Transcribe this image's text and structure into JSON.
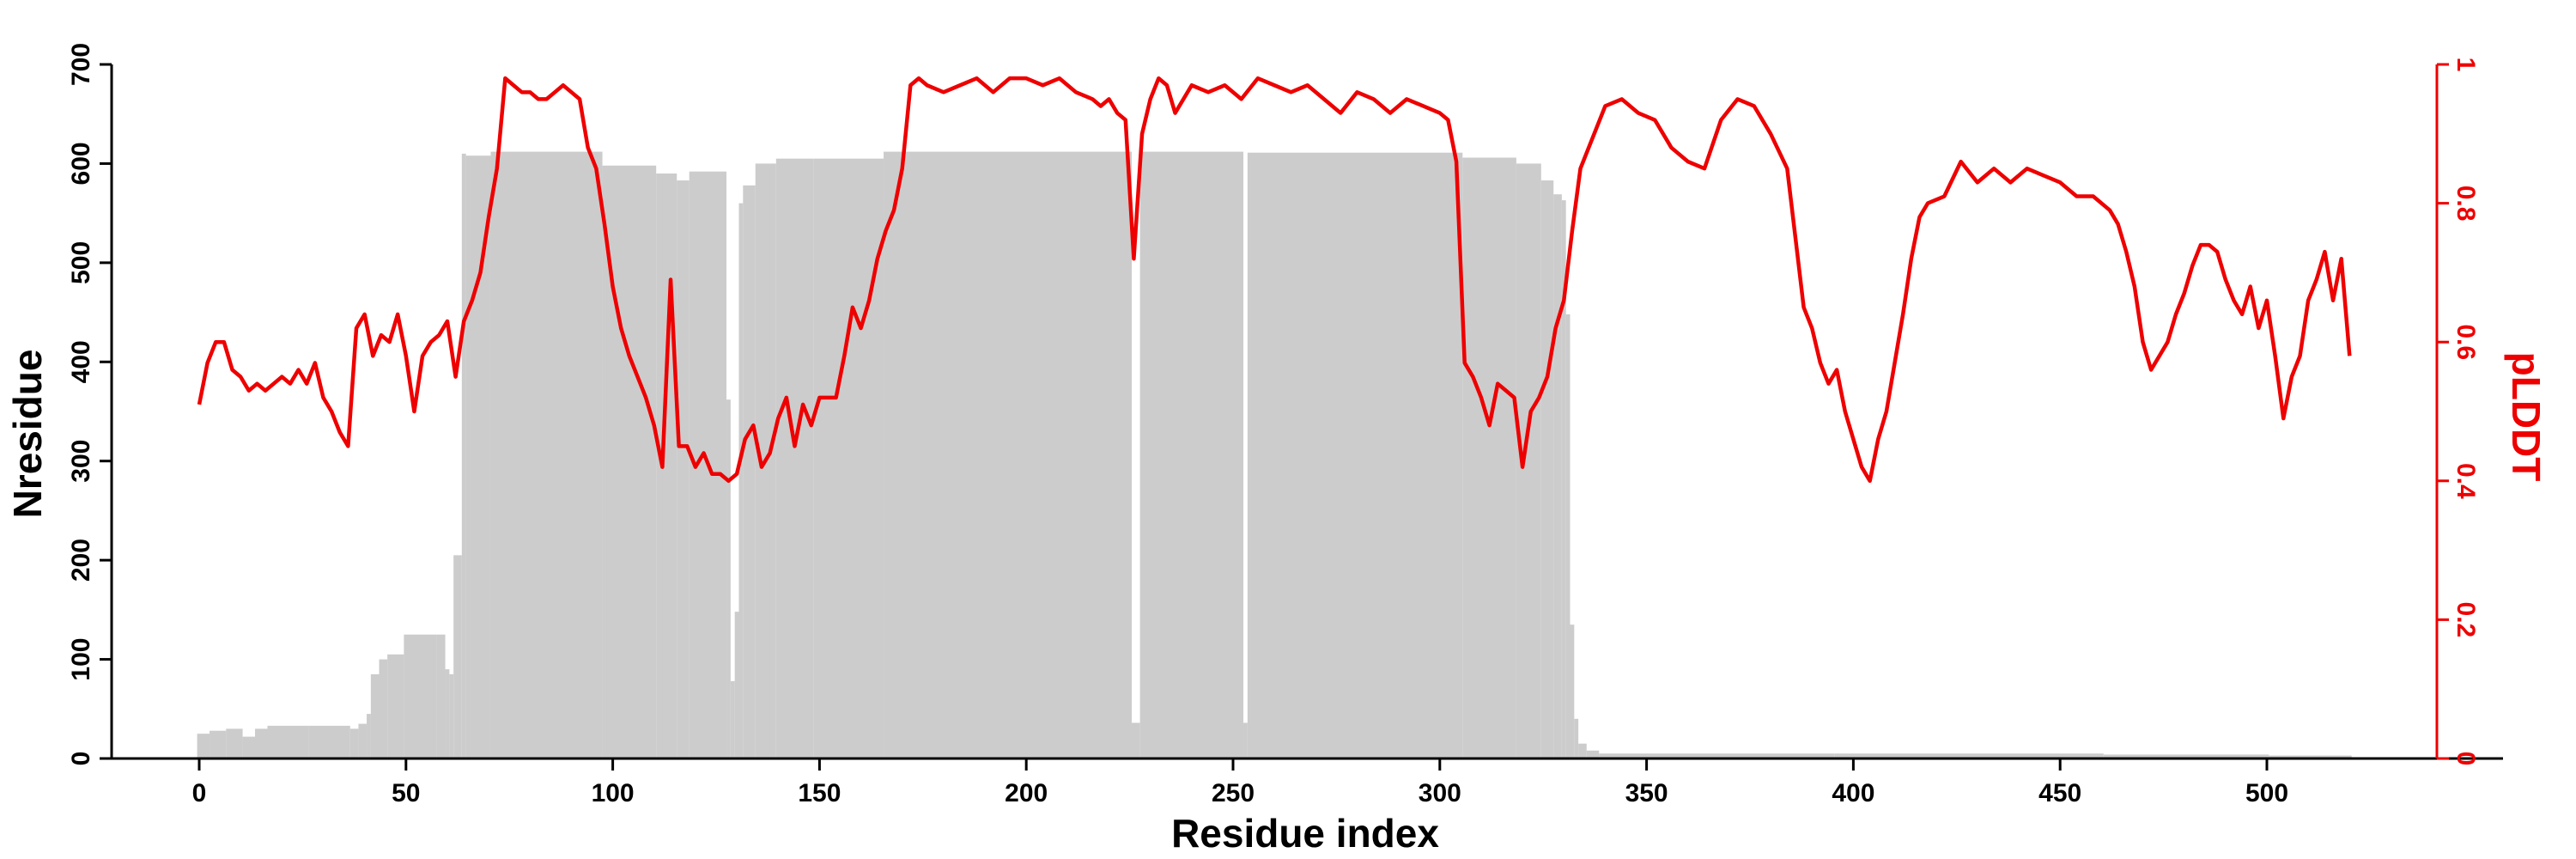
{
  "chart_data": {
    "type": "bar",
    "xlabel": "Residue index",
    "ylabel": "Nresidue",
    "y2label": "pLDDT",
    "xlim": [
      -20,
      535
    ],
    "ylim": [
      0,
      700
    ],
    "y2lim": [
      0,
      1
    ],
    "x_ticks": [
      0,
      50,
      100,
      150,
      200,
      250,
      300,
      350,
      400,
      450,
      500
    ],
    "y_ticks": [
      0,
      100,
      200,
      300,
      400,
      500,
      600,
      700
    ],
    "y2_ticks": [
      0,
      0.2,
      0.4,
      0.6,
      0.8,
      1
    ],
    "y2_tick_labels": [
      "0",
      "0.2",
      "0.4",
      "0.6",
      "0.8",
      "1"
    ],
    "grid": false,
    "colors": {
      "bars": "#cccccc",
      "plddt": "#ee0000",
      "axes": "#000000"
    },
    "series": [
      {
        "name": "Nresidue",
        "kind": "bar",
        "segments": [
          [
            0,
            2,
            25
          ],
          [
            3,
            6,
            28
          ],
          [
            7,
            10,
            30
          ],
          [
            11,
            13,
            22
          ],
          [
            14,
            16,
            30
          ],
          [
            17,
            26,
            33
          ],
          [
            27,
            36,
            33
          ],
          [
            37,
            38,
            30
          ],
          [
            39,
            40,
            35
          ],
          [
            41,
            41,
            45
          ],
          [
            42,
            43,
            85
          ],
          [
            44,
            45,
            100
          ],
          [
            46,
            49,
            105
          ],
          [
            50,
            57,
            125
          ],
          [
            58,
            59,
            125
          ],
          [
            60,
            60,
            90
          ],
          [
            61,
            61,
            85
          ],
          [
            62,
            63,
            205
          ],
          [
            64,
            64,
            610
          ],
          [
            65,
            70,
            608
          ],
          [
            71,
            97,
            612
          ],
          [
            98,
            110,
            598
          ],
          [
            111,
            115,
            590
          ],
          [
            116,
            118,
            583
          ],
          [
            119,
            127,
            592
          ],
          [
            128,
            128,
            362
          ],
          [
            129,
            129,
            78
          ],
          [
            130,
            130,
            148
          ],
          [
            131,
            131,
            560
          ],
          [
            132,
            134,
            578
          ],
          [
            135,
            139,
            600
          ],
          [
            140,
            148,
            605
          ],
          [
            149,
            165,
            605
          ],
          [
            166,
            225,
            612
          ],
          [
            226,
            227,
            36
          ],
          [
            228,
            252,
            612
          ],
          [
            253,
            253,
            36
          ],
          [
            254,
            305,
            611
          ],
          [
            306,
            318,
            606
          ],
          [
            319,
            324,
            600
          ],
          [
            325,
            327,
            583
          ],
          [
            328,
            329,
            569
          ],
          [
            330,
            330,
            563
          ],
          [
            331,
            331,
            448
          ],
          [
            332,
            332,
            135
          ],
          [
            333,
            333,
            40
          ],
          [
            334,
            335,
            15
          ],
          [
            336,
            338,
            8
          ],
          [
            339,
            395,
            5
          ],
          [
            396,
            460,
            5
          ],
          [
            461,
            500,
            4
          ],
          [
            501,
            520,
            3
          ]
        ]
      },
      {
        "name": "pLDDT",
        "kind": "line",
        "x": [
          0,
          2,
          4,
          6,
          8,
          10,
          12,
          14,
          16,
          18,
          20,
          22,
          24,
          26,
          28,
          30,
          32,
          34,
          36,
          38,
          40,
          42,
          44,
          46,
          48,
          50,
          52,
          54,
          56,
          58,
          60,
          62,
          64,
          66,
          68,
          70,
          72,
          74,
          76,
          78,
          80,
          82,
          84,
          86,
          88,
          90,
          92,
          94,
          96,
          98,
          100,
          102,
          104,
          106,
          108,
          110,
          112,
          114,
          116,
          118,
          120,
          122,
          124,
          126,
          128,
          130,
          132,
          134,
          136,
          138,
          140,
          142,
          144,
          146,
          148,
          150,
          152,
          154,
          156,
          158,
          160,
          162,
          164,
          166,
          168,
          170,
          172,
          174,
          176,
          180,
          184,
          188,
          192,
          196,
          200,
          204,
          208,
          212,
          216,
          218,
          220,
          222,
          224,
          226,
          228,
          230,
          232,
          234,
          236,
          240,
          244,
          248,
          252,
          256,
          260,
          264,
          268,
          272,
          276,
          280,
          284,
          288,
          292,
          296,
          300,
          302,
          304,
          306,
          308,
          310,
          312,
          314,
          316,
          318,
          320,
          322,
          324,
          326,
          328,
          330,
          332,
          334,
          336,
          338,
          340,
          344,
          348,
          352,
          356,
          360,
          364,
          368,
          372,
          376,
          380,
          384,
          386,
          388,
          390,
          392,
          394,
          396,
          398,
          400,
          402,
          404,
          406,
          408,
          410,
          412,
          414,
          416,
          418,
          422,
          426,
          430,
          434,
          438,
          442,
          446,
          450,
          454,
          458,
          462,
          464,
          466,
          468,
          470,
          472,
          474,
          476,
          478,
          480,
          482,
          484,
          486,
          488,
          490,
          492,
          494,
          496,
          498,
          500,
          502,
          504,
          506,
          508,
          510,
          512,
          514,
          516,
          518,
          520
        ],
        "y": [
          0.51,
          0.57,
          0.6,
          0.6,
          0.56,
          0.55,
          0.53,
          0.54,
          0.53,
          0.54,
          0.55,
          0.54,
          0.56,
          0.54,
          0.57,
          0.52,
          0.5,
          0.47,
          0.45,
          0.62,
          0.64,
          0.58,
          0.61,
          0.6,
          0.64,
          0.58,
          0.5,
          0.58,
          0.6,
          0.61,
          0.63,
          0.55,
          0.63,
          0.66,
          0.7,
          0.78,
          0.85,
          0.98,
          0.97,
          0.96,
          0.96,
          0.95,
          0.95,
          0.96,
          0.97,
          0.96,
          0.95,
          0.88,
          0.85,
          0.77,
          0.68,
          0.62,
          0.58,
          0.55,
          0.52,
          0.48,
          0.42,
          0.69,
          0.45,
          0.45,
          0.42,
          0.44,
          0.41,
          0.41,
          0.4,
          0.41,
          0.46,
          0.48,
          0.42,
          0.44,
          0.49,
          0.52,
          0.45,
          0.51,
          0.48,
          0.52,
          0.52,
          0.52,
          0.58,
          0.65,
          0.62,
          0.66,
          0.72,
          0.76,
          0.79,
          0.85,
          0.97,
          0.98,
          0.97,
          0.96,
          0.97,
          0.98,
          0.96,
          0.98,
          0.98,
          0.97,
          0.98,
          0.96,
          0.95,
          0.94,
          0.95,
          0.93,
          0.92,
          0.72,
          0.9,
          0.95,
          0.98,
          0.97,
          0.93,
          0.97,
          0.96,
          0.97,
          0.95,
          0.98,
          0.97,
          0.96,
          0.97,
          0.95,
          0.93,
          0.96,
          0.95,
          0.93,
          0.95,
          0.94,
          0.93,
          0.92,
          0.86,
          0.57,
          0.55,
          0.52,
          0.48,
          0.54,
          0.53,
          0.52,
          0.42,
          0.5,
          0.52,
          0.55,
          0.62,
          0.66,
          0.76,
          0.85,
          0.88,
          0.91,
          0.94,
          0.95,
          0.93,
          0.92,
          0.88,
          0.86,
          0.85,
          0.92,
          0.95,
          0.94,
          0.9,
          0.85,
          0.75,
          0.65,
          0.62,
          0.57,
          0.54,
          0.56,
          0.5,
          0.46,
          0.42,
          0.4,
          0.46,
          0.5,
          0.57,
          0.64,
          0.72,
          0.78,
          0.8,
          0.81,
          0.86,
          0.83,
          0.85,
          0.83,
          0.85,
          0.84,
          0.83,
          0.81,
          0.81,
          0.79,
          0.77,
          0.73,
          0.68,
          0.6,
          0.56,
          0.58,
          0.6,
          0.64,
          0.67,
          0.71,
          0.74,
          0.74,
          0.73,
          0.69,
          0.66,
          0.64,
          0.68,
          0.62,
          0.66,
          0.58,
          0.49,
          0.55,
          0.58,
          0.66,
          0.69,
          0.73,
          0.66,
          0.72,
          0.58
        ]
      }
    ]
  }
}
